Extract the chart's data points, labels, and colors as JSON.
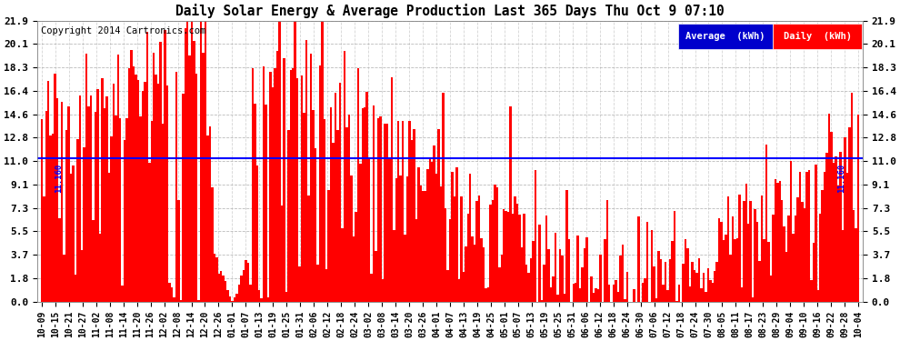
{
  "title": "Daily Solar Energy & Average Production Last 365 Days Thu Oct 9 07:10",
  "copyright": "Copyright 2014 Cartronics.com",
  "average_value": 11.16,
  "average_label": "11.160",
  "yticks": [
    0.0,
    1.8,
    3.7,
    5.5,
    7.3,
    9.1,
    11.0,
    12.8,
    14.6,
    16.4,
    18.3,
    20.1,
    21.9
  ],
  "ymax": 21.9,
  "ymin": 0.0,
  "bar_color": "#FF0000",
  "avg_line_color": "#0000FF",
  "background_color": "#FFFFFF",
  "plot_bg_color": "#FFFFFF",
  "grid_color": "#AAAAAA",
  "title_color": "#000000",
  "legend_avg_bg": "#0000CC",
  "legend_daily_bg": "#CC0000",
  "legend_text_color": "#FFFFFF",
  "x_labels": [
    "10-09",
    "10-15",
    "10-21",
    "10-27",
    "11-02",
    "11-08",
    "11-14",
    "11-20",
    "11-26",
    "12-02",
    "12-08",
    "12-14",
    "12-20",
    "12-26",
    "01-01",
    "01-07",
    "01-13",
    "01-19",
    "01-25",
    "01-31",
    "02-06",
    "02-12",
    "02-18",
    "02-24",
    "03-02",
    "03-08",
    "03-14",
    "03-20",
    "03-26",
    "04-01",
    "04-07",
    "04-13",
    "04-19",
    "04-25",
    "05-01",
    "05-07",
    "05-13",
    "05-19",
    "05-25",
    "05-31",
    "06-06",
    "06-12",
    "06-18",
    "06-24",
    "06-30",
    "07-06",
    "07-12",
    "07-18",
    "07-24",
    "07-30",
    "08-05",
    "08-11",
    "08-17",
    "08-23",
    "08-29",
    "09-04",
    "09-10",
    "09-16",
    "09-22",
    "09-28",
    "10-04"
  ],
  "num_bars": 365,
  "seed": 42
}
